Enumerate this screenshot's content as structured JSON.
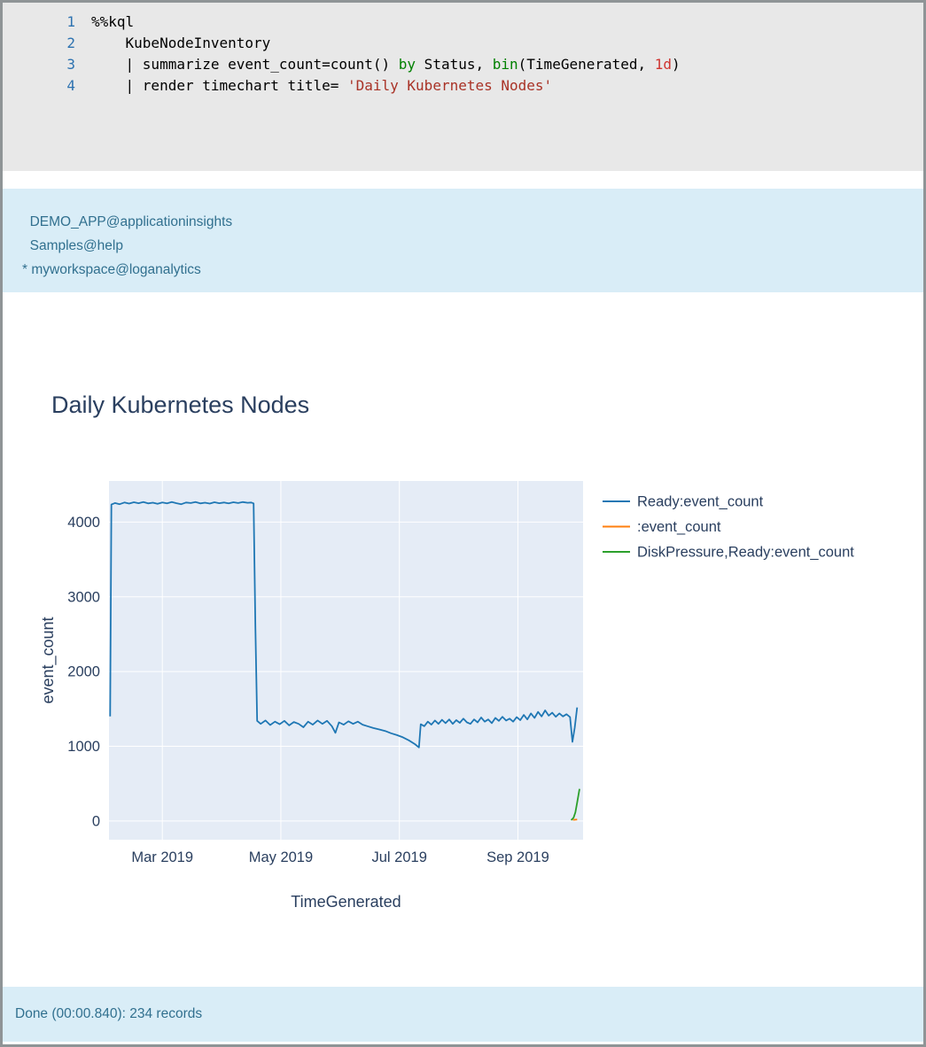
{
  "code_cell": {
    "lines": [
      {
        "no": "1",
        "tokens": [
          {
            "c": "plain",
            "t": "%%kql"
          }
        ]
      },
      {
        "no": "2",
        "tokens": [
          {
            "c": "plain",
            "t": "    KubeNodeInventory"
          }
        ]
      },
      {
        "no": "3",
        "tokens": [
          {
            "c": "plain",
            "t": "    | summarize event_count=count() "
          },
          {
            "c": "keyword",
            "t": "by"
          },
          {
            "c": "plain",
            "t": " Status, "
          },
          {
            "c": "keyword",
            "t": "bin"
          },
          {
            "c": "plain",
            "t": "(TimeGenerated, "
          },
          {
            "c": "number",
            "t": "1d"
          },
          {
            "c": "plain",
            "t": ")"
          }
        ]
      },
      {
        "no": "4",
        "tokens": [
          {
            "c": "plain",
            "t": "    | render timechart title= "
          },
          {
            "c": "string",
            "t": "'Daily Kubernetes Nodes'"
          }
        ]
      }
    ]
  },
  "connections": {
    "items": [
      {
        "prefix": "  ",
        "label": "DEMO_APP@applicationinsights",
        "current": false
      },
      {
        "prefix": "  ",
        "label": "Samples@help",
        "current": false
      },
      {
        "prefix": "* ",
        "label": "myworkspace@loganalytics",
        "current": true
      }
    ]
  },
  "status_bar": {
    "text": "Done (00:00.840): 234 records"
  },
  "chart_data": {
    "type": "line",
    "title": "Daily Kubernetes Nodes",
    "xlabel": "TimeGenerated",
    "ylabel": "event_count",
    "x_encoding": "month of 2019 as decimal (3.0 = Mar 1, 2019)",
    "xlim": [
      2.1,
      10.1
    ],
    "ylim": [
      -250,
      4550
    ],
    "grid": true,
    "legend_position": "right",
    "colors": {
      "plot_bg": "#e5ecf6",
      "grid": "#ffffff",
      "text": "#2a3f5f"
    },
    "xticks": [
      {
        "v": 3,
        "label": "Mar 2019"
      },
      {
        "v": 5,
        "label": "May 2019"
      },
      {
        "v": 7,
        "label": "Jul 2019"
      },
      {
        "v": 9,
        "label": "Sep 2019"
      }
    ],
    "yticks": [
      {
        "v": 0,
        "label": "0"
      },
      {
        "v": 1000,
        "label": "1000"
      },
      {
        "v": 2000,
        "label": "2000"
      },
      {
        "v": 3000,
        "label": "3000"
      },
      {
        "v": 4000,
        "label": "4000"
      }
    ],
    "series": [
      {
        "name": "Ready:event_count",
        "color": "#1f77b4",
        "points": [
          [
            2.12,
            1400
          ],
          [
            2.14,
            4235
          ],
          [
            2.2,
            4255
          ],
          [
            2.28,
            4240
          ],
          [
            2.36,
            4262
          ],
          [
            2.44,
            4248
          ],
          [
            2.52,
            4266
          ],
          [
            2.6,
            4252
          ],
          [
            2.68,
            4268
          ],
          [
            2.76,
            4250
          ],
          [
            2.84,
            4260
          ],
          [
            2.92,
            4244
          ],
          [
            3.0,
            4262
          ],
          [
            3.08,
            4250
          ],
          [
            3.16,
            4268
          ],
          [
            3.24,
            4252
          ],
          [
            3.32,
            4240
          ],
          [
            3.4,
            4262
          ],
          [
            3.48,
            4255
          ],
          [
            3.56,
            4268
          ],
          [
            3.64,
            4250
          ],
          [
            3.72,
            4260
          ],
          [
            3.8,
            4248
          ],
          [
            3.88,
            4266
          ],
          [
            3.96,
            4252
          ],
          [
            4.04,
            4262
          ],
          [
            4.12,
            4250
          ],
          [
            4.2,
            4265
          ],
          [
            4.28,
            4255
          ],
          [
            4.36,
            4268
          ],
          [
            4.44,
            4258
          ],
          [
            4.5,
            4262
          ],
          [
            4.54,
            4250
          ],
          [
            4.57,
            2600
          ],
          [
            4.6,
            1340
          ],
          [
            4.66,
            1300
          ],
          [
            4.74,
            1345
          ],
          [
            4.82,
            1285
          ],
          [
            4.9,
            1330
          ],
          [
            4.98,
            1295
          ],
          [
            5.06,
            1340
          ],
          [
            5.14,
            1280
          ],
          [
            5.22,
            1325
          ],
          [
            5.3,
            1300
          ],
          [
            5.38,
            1255
          ],
          [
            5.46,
            1330
          ],
          [
            5.54,
            1290
          ],
          [
            5.62,
            1345
          ],
          [
            5.7,
            1300
          ],
          [
            5.78,
            1340
          ],
          [
            5.86,
            1270
          ],
          [
            5.92,
            1180
          ],
          [
            5.98,
            1320
          ],
          [
            6.06,
            1290
          ],
          [
            6.14,
            1335
          ],
          [
            6.22,
            1300
          ],
          [
            6.3,
            1330
          ],
          [
            6.38,
            1290
          ],
          [
            6.46,
            1270
          ],
          [
            6.56,
            1245
          ],
          [
            6.66,
            1225
          ],
          [
            6.76,
            1205
          ],
          [
            6.86,
            1175
          ],
          [
            6.96,
            1150
          ],
          [
            7.06,
            1120
          ],
          [
            7.16,
            1080
          ],
          [
            7.26,
            1030
          ],
          [
            7.33,
            985
          ],
          [
            7.36,
            1295
          ],
          [
            7.42,
            1270
          ],
          [
            7.48,
            1330
          ],
          [
            7.54,
            1290
          ],
          [
            7.6,
            1345
          ],
          [
            7.66,
            1300
          ],
          [
            7.72,
            1355
          ],
          [
            7.78,
            1310
          ],
          [
            7.84,
            1360
          ],
          [
            7.9,
            1300
          ],
          [
            7.96,
            1350
          ],
          [
            8.02,
            1315
          ],
          [
            8.08,
            1370
          ],
          [
            8.14,
            1320
          ],
          [
            8.2,
            1300
          ],
          [
            8.26,
            1360
          ],
          [
            8.32,
            1320
          ],
          [
            8.38,
            1385
          ],
          [
            8.44,
            1330
          ],
          [
            8.5,
            1360
          ],
          [
            8.56,
            1310
          ],
          [
            8.62,
            1380
          ],
          [
            8.68,
            1340
          ],
          [
            8.74,
            1395
          ],
          [
            8.8,
            1345
          ],
          [
            8.86,
            1370
          ],
          [
            8.92,
            1330
          ],
          [
            8.98,
            1390
          ],
          [
            9.04,
            1350
          ],
          [
            9.1,
            1420
          ],
          [
            9.16,
            1360
          ],
          [
            9.22,
            1440
          ],
          [
            9.28,
            1380
          ],
          [
            9.34,
            1460
          ],
          [
            9.4,
            1400
          ],
          [
            9.46,
            1480
          ],
          [
            9.52,
            1410
          ],
          [
            9.58,
            1450
          ],
          [
            9.64,
            1395
          ],
          [
            9.7,
            1440
          ],
          [
            9.76,
            1400
          ],
          [
            9.82,
            1430
          ],
          [
            9.88,
            1390
          ],
          [
            9.92,
            1060
          ],
          [
            9.96,
            1250
          ],
          [
            10.0,
            1520
          ]
        ]
      },
      {
        "name": ":event_count",
        "color": "#ff7f0e",
        "points": [
          [
            9.93,
            15
          ],
          [
            10.0,
            20
          ]
        ]
      },
      {
        "name": "DiskPressure,Ready:event_count",
        "color": "#2ca02c",
        "points": [
          [
            9.9,
            12
          ],
          [
            9.94,
            45
          ],
          [
            9.97,
            115
          ],
          [
            10.0,
            245
          ],
          [
            10.04,
            430
          ]
        ]
      }
    ]
  }
}
